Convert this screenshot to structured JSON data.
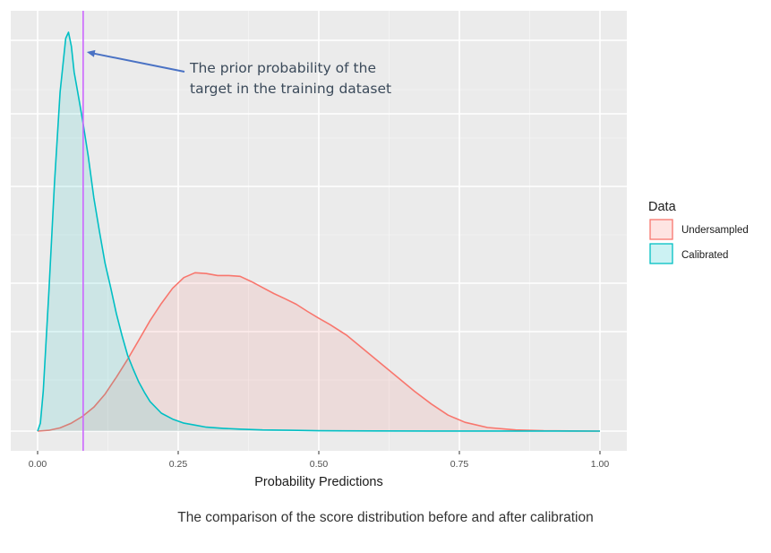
{
  "chart_data": {
    "type": "area",
    "title": "",
    "xlabel": "Probability Predictions",
    "ylabel": "",
    "xlim": [
      0,
      1
    ],
    "x_ticks": [
      "0.00",
      "0.25",
      "0.50",
      "0.75",
      "1.00"
    ],
    "x_tick_values": [
      0,
      0.25,
      0.5,
      0.75,
      1
    ],
    "ylim": [
      0,
      1
    ],
    "grid": true,
    "legend": {
      "title": "Data",
      "placement": "right",
      "entries": [
        "Undersampled",
        "Calibrated"
      ]
    },
    "series": [
      {
        "name": "Undersampled",
        "color": "#f8766d",
        "x": [
          0,
          0.02,
          0.04,
          0.06,
          0.08,
          0.1,
          0.12,
          0.14,
          0.16,
          0.18,
          0.2,
          0.22,
          0.24,
          0.26,
          0.28,
          0.3,
          0.32,
          0.34,
          0.36,
          0.38,
          0.4,
          0.42,
          0.44,
          0.46,
          0.48,
          0.5,
          0.52,
          0.55,
          0.58,
          0.61,
          0.64,
          0.67,
          0.7,
          0.73,
          0.76,
          0.8,
          0.85,
          0.9,
          1.0
        ],
        "y": [
          0,
          0.002,
          0.008,
          0.02,
          0.037,
          0.06,
          0.093,
          0.135,
          0.18,
          0.228,
          0.277,
          0.32,
          0.358,
          0.385,
          0.397,
          0.395,
          0.39,
          0.39,
          0.388,
          0.375,
          0.36,
          0.345,
          0.332,
          0.318,
          0.3,
          0.283,
          0.267,
          0.24,
          0.205,
          0.17,
          0.135,
          0.1,
          0.068,
          0.04,
          0.022,
          0.009,
          0.003,
          0.001,
          0
        ]
      },
      {
        "name": "Calibrated",
        "color": "#00bfc4",
        "x": [
          0,
          0.005,
          0.01,
          0.02,
          0.03,
          0.04,
          0.05,
          0.055,
          0.06,
          0.065,
          0.07,
          0.08,
          0.09,
          0.1,
          0.11,
          0.12,
          0.13,
          0.14,
          0.15,
          0.16,
          0.17,
          0.18,
          0.19,
          0.2,
          0.22,
          0.24,
          0.26,
          0.28,
          0.3,
          0.33,
          0.36,
          0.4,
          0.45,
          0.5,
          0.6,
          0.7,
          1.0
        ],
        "y": [
          0,
          0.02,
          0.1,
          0.35,
          0.62,
          0.85,
          0.985,
          1.0,
          0.965,
          0.9,
          0.86,
          0.78,
          0.69,
          0.585,
          0.5,
          0.42,
          0.36,
          0.295,
          0.24,
          0.19,
          0.155,
          0.123,
          0.097,
          0.074,
          0.045,
          0.03,
          0.02,
          0.015,
          0.01,
          0.007,
          0.005,
          0.003,
          0.002,
          0.001,
          0.0005,
          0.0002,
          0
        ]
      }
    ],
    "reference_line": {
      "x": 0.081,
      "color": "#cc66ff"
    },
    "annotation": {
      "lines": [
        "The prior probability of the",
        "target in the training dataset"
      ],
      "arrow_color": "#4a72c4",
      "text_color": "#3b4a5a"
    }
  },
  "caption": "The comparison of the score distribution before and after calibration"
}
